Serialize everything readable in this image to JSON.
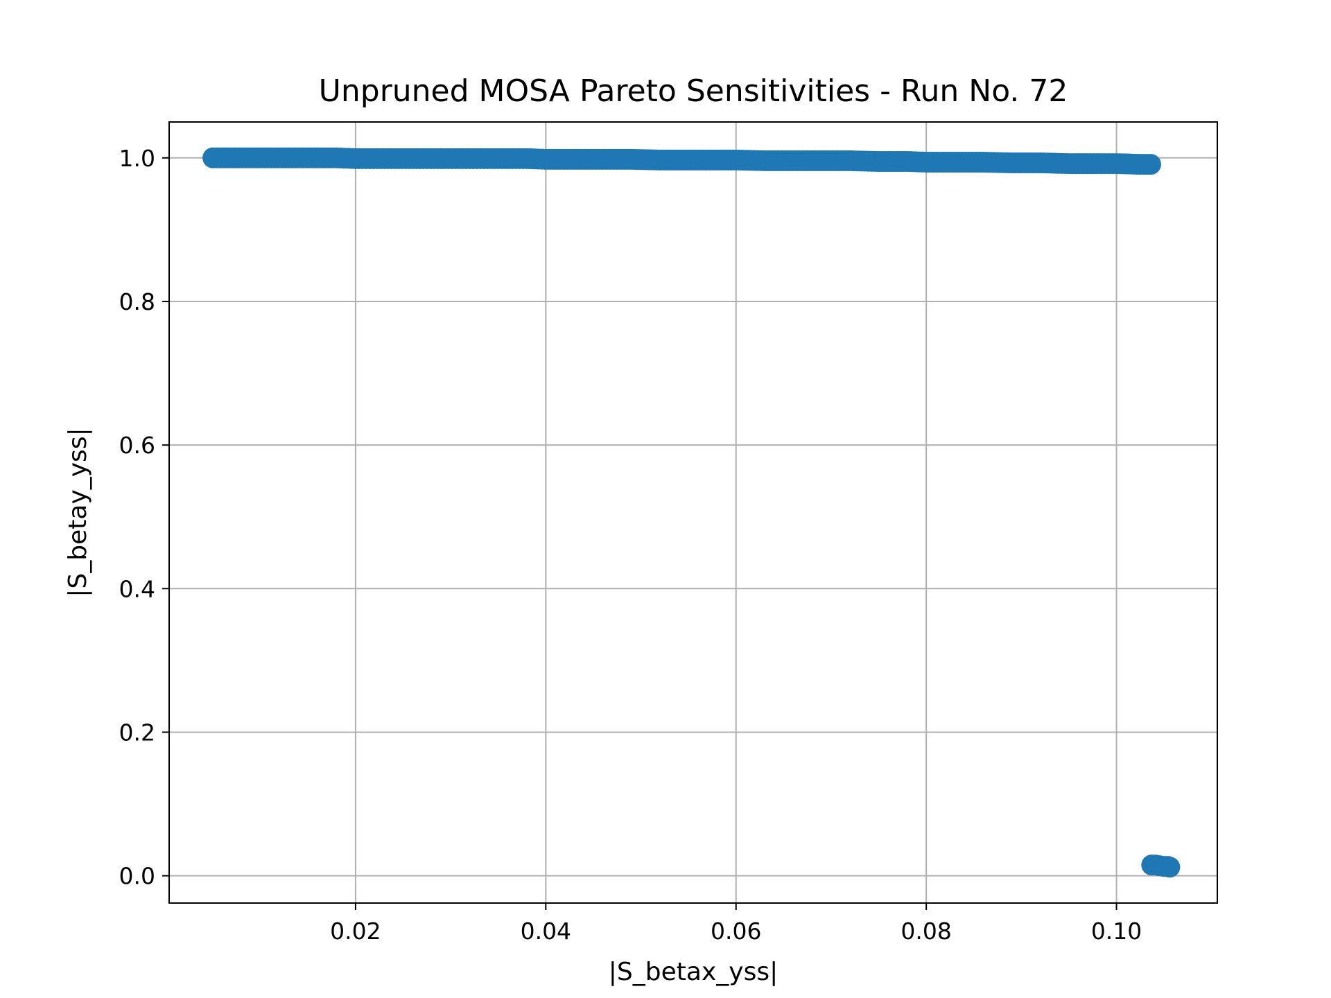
{
  "chart_data": {
    "type": "scatter",
    "title": "Unpruned MOSA Pareto Sensitivities - Run No. 72",
    "xlabel": "|S_betax_yss|",
    "ylabel": "|S_betay_yss|",
    "xlim": [
      0.0004,
      0.1106
    ],
    "ylim": [
      -0.038,
      1.05
    ],
    "xticks": [
      0.02,
      0.04,
      0.06,
      0.08,
      0.1
    ],
    "xtick_labels": [
      "0.02",
      "0.04",
      "0.06",
      "0.08",
      "0.10"
    ],
    "yticks": [
      0.0,
      0.2,
      0.4,
      0.6,
      0.8,
      1.0
    ],
    "ytick_labels": [
      "0.0",
      "0.2",
      "0.4",
      "0.6",
      "0.8",
      "1.0"
    ],
    "grid": true,
    "legend": "none",
    "marker_color": "#1f77b4",
    "series": [
      {
        "points": {
          "x": [
            0.005,
            0.007,
            0.01,
            0.013,
            0.016,
            0.018,
            0.02,
            0.023,
            0.026,
            0.029,
            0.032,
            0.035,
            0.038,
            0.04,
            0.043,
            0.046,
            0.049,
            0.052,
            0.055,
            0.058,
            0.06,
            0.063,
            0.066,
            0.069,
            0.072,
            0.075,
            0.078,
            0.08,
            0.083,
            0.086,
            0.089,
            0.092,
            0.095,
            0.098,
            0.1,
            0.1025,
            0.1036,
            0.1037,
            0.1041,
            0.1045,
            0.105,
            0.1054,
            0.1056
          ],
          "y": [
            1.0,
            1.0,
            1.0,
            1.0,
            1.0,
            1.0,
            0.999,
            0.999,
            0.999,
            0.999,
            0.999,
            0.999,
            0.999,
            0.998,
            0.998,
            0.998,
            0.998,
            0.997,
            0.997,
            0.997,
            0.997,
            0.996,
            0.996,
            0.996,
            0.996,
            0.995,
            0.995,
            0.994,
            0.994,
            0.994,
            0.993,
            0.993,
            0.992,
            0.992,
            0.992,
            0.991,
            0.991,
            0.015,
            0.015,
            0.014,
            0.013,
            0.013,
            0.012
          ]
        }
      }
    ]
  }
}
